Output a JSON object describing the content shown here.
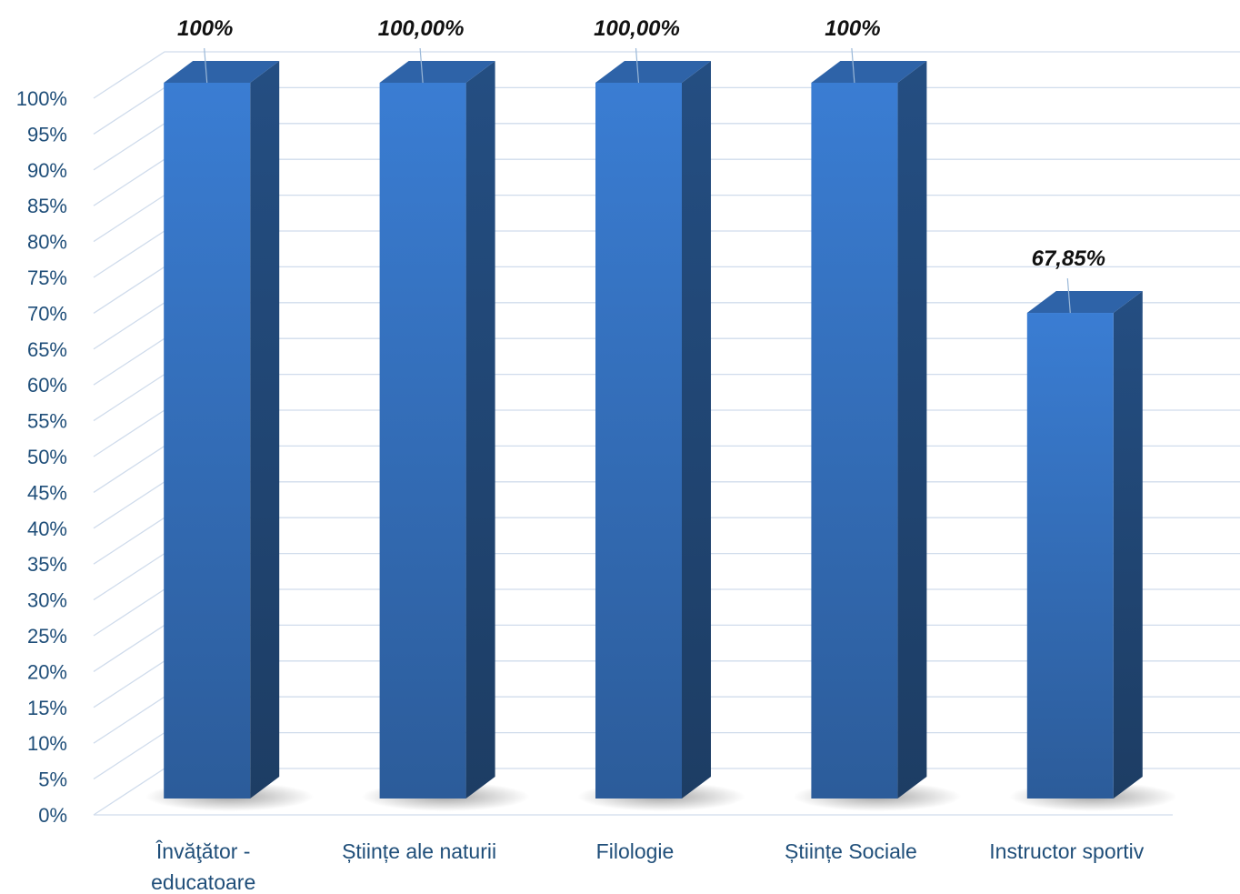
{
  "chart_data": {
    "type": "bar",
    "style": "3d-column",
    "categories": [
      [
        "Învăţător -",
        "educatoare"
      ],
      [
        "Științe ale naturii"
      ],
      [
        "Filologie"
      ],
      [
        "Științe Sociale"
      ],
      [
        "Instructor sportiv"
      ]
    ],
    "values": [
      100,
      100,
      100,
      100,
      67.85
    ],
    "data_labels": [
      "100%",
      "100,00%",
      "100,00%",
      "100%",
      "67,85%"
    ],
    "y_ticks": [
      "0%",
      "5%",
      "10%",
      "15%",
      "20%",
      "25%",
      "30%",
      "35%",
      "40%",
      "45%",
      "50%",
      "55%",
      "60%",
      "65%",
      "70%",
      "75%",
      "80%",
      "85%",
      "90%",
      "95%",
      "100%"
    ],
    "ylim": [
      0,
      100
    ],
    "grid": true,
    "colors": {
      "bar_front": "#3a7bd0",
      "bar_front_bottom": "#2b5a98",
      "bar_side": "#1f4878",
      "bar_top": "#2e63a8",
      "grid": "#d0dcec",
      "axis_text": "#1f4e79"
    }
  }
}
